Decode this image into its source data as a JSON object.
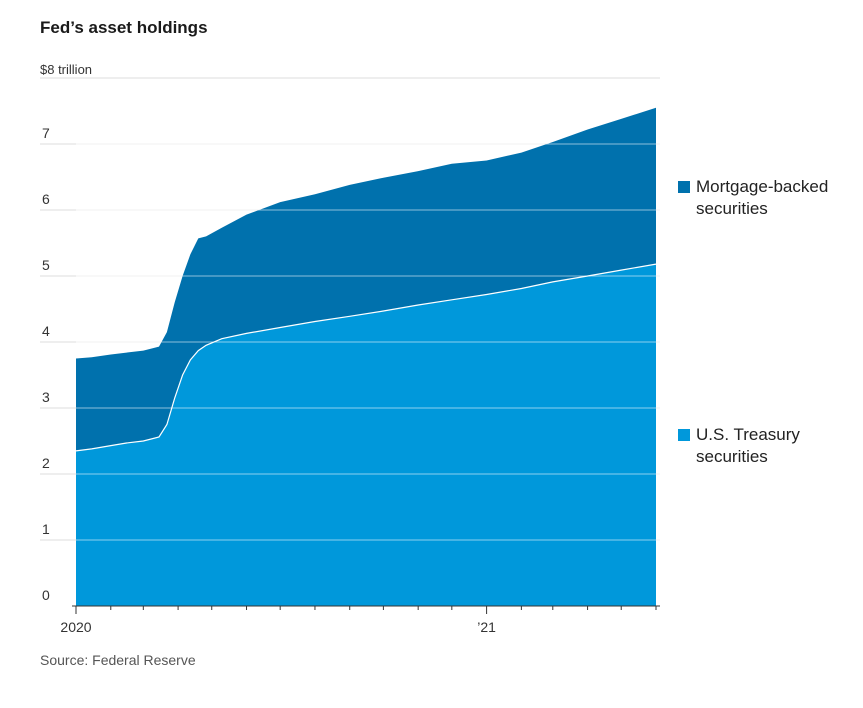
{
  "title": "Fed’s asset holdings",
  "unit_label": "$8 trillion",
  "source": "Source: Federal Reserve",
  "colors": {
    "mbs": "#0071ad",
    "treasury": "#0098db",
    "gridline": "#dddddd",
    "boundary": "#ffffff"
  },
  "legend": [
    {
      "label": "Mortgage-backed securities",
      "series": "mbs"
    },
    {
      "label": "U.S. Treasury securities",
      "series": "treasury"
    }
  ],
  "chart_data": {
    "type": "area",
    "stacked": true,
    "title": "Fed’s asset holdings",
    "y_unit": "$ trillion",
    "ylim": [
      0,
      8
    ],
    "y_ticks": [
      0,
      1,
      2,
      3,
      4,
      5,
      6,
      7,
      8
    ],
    "y_tick_labels": [
      "0",
      "1",
      "2",
      "3",
      "4",
      "5",
      "6",
      "7",
      "$8 trillion"
    ],
    "xlim": [
      "2020-01-01",
      "2021-06-01"
    ],
    "x_tick_labels": [
      {
        "date": "2020-01-01",
        "label": "2020"
      },
      {
        "date": "2021-01-01",
        "label": "’21"
      }
    ],
    "grid": true,
    "legend_position": "right",
    "series": [
      {
        "name": "U.S. Treasury securities",
        "key": "treasury",
        "points": [
          [
            "2020-01-01",
            2.35
          ],
          [
            "2020-01-15",
            2.38
          ],
          [
            "2020-02-01",
            2.43
          ],
          [
            "2020-02-15",
            2.47
          ],
          [
            "2020-03-01",
            2.5
          ],
          [
            "2020-03-08",
            2.53
          ],
          [
            "2020-03-15",
            2.56
          ],
          [
            "2020-03-22",
            2.75
          ],
          [
            "2020-03-29",
            3.15
          ],
          [
            "2020-04-05",
            3.5
          ],
          [
            "2020-04-12",
            3.73
          ],
          [
            "2020-04-19",
            3.87
          ],
          [
            "2020-04-26",
            3.95
          ],
          [
            "2020-05-10",
            4.05
          ],
          [
            "2020-06-01",
            4.13
          ],
          [
            "2020-07-01",
            4.22
          ],
          [
            "2020-08-01",
            4.31
          ],
          [
            "2020-09-01",
            4.39
          ],
          [
            "2020-10-01",
            4.47
          ],
          [
            "2020-11-01",
            4.56
          ],
          [
            "2020-12-01",
            4.64
          ],
          [
            "2021-01-01",
            4.72
          ],
          [
            "2021-02-01",
            4.81
          ],
          [
            "2021-03-01",
            4.91
          ],
          [
            "2021-04-01",
            5.0
          ],
          [
            "2021-05-01",
            5.09
          ],
          [
            "2021-06-01",
            5.18
          ]
        ]
      },
      {
        "name": "Mortgage-backed securities",
        "key": "mbs",
        "points": [
          [
            "2020-01-01",
            1.4
          ],
          [
            "2020-01-15",
            1.39
          ],
          [
            "2020-02-01",
            1.38
          ],
          [
            "2020-02-15",
            1.37
          ],
          [
            "2020-03-01",
            1.37
          ],
          [
            "2020-03-08",
            1.37
          ],
          [
            "2020-03-15",
            1.37
          ],
          [
            "2020-03-22",
            1.4
          ],
          [
            "2020-03-29",
            1.45
          ],
          [
            "2020-04-05",
            1.5
          ],
          [
            "2020-04-12",
            1.6
          ],
          [
            "2020-04-19",
            1.7
          ],
          [
            "2020-04-26",
            1.65
          ],
          [
            "2020-05-10",
            1.68
          ],
          [
            "2020-06-01",
            1.8
          ],
          [
            "2020-07-01",
            1.9
          ],
          [
            "2020-08-01",
            1.93
          ],
          [
            "2020-09-01",
            1.99
          ],
          [
            "2020-10-01",
            2.02
          ],
          [
            "2020-11-01",
            2.03
          ],
          [
            "2020-12-01",
            2.06
          ],
          [
            "2021-01-01",
            2.03
          ],
          [
            "2021-02-01",
            2.06
          ],
          [
            "2021-03-01",
            2.12
          ],
          [
            "2021-04-01",
            2.22
          ],
          [
            "2021-05-01",
            2.29
          ],
          [
            "2021-06-01",
            2.37
          ]
        ]
      }
    ]
  }
}
